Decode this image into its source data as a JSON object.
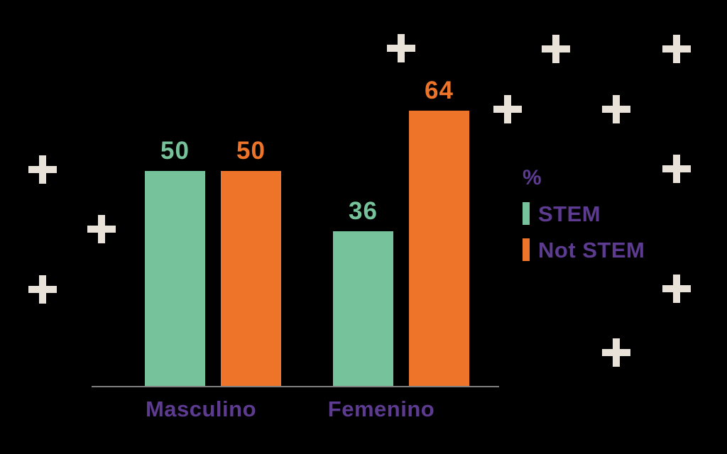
{
  "colors": {
    "background": "#000000",
    "stem_green": "#76C29B",
    "not_stem_orange": "#ED7428",
    "text_purple": "#5D3B90",
    "plus_cream": "#E9E2D8",
    "axis_gray": "#7F7F7F"
  },
  "chart_data": {
    "type": "bar",
    "title": "",
    "xlabel": "",
    "ylabel": "",
    "unit": "%",
    "categories": [
      "Masculino",
      "Femenino"
    ],
    "series": [
      {
        "name": "STEM",
        "color": "#76C29B",
        "values": [
          50,
          36
        ]
      },
      {
        "name": "Not STEM",
        "color": "#ED7428",
        "values": [
          50,
          64
        ]
      }
    ],
    "legend_title": "%",
    "legend_position": "right",
    "ylim": [
      0,
      100
    ],
    "grid": false,
    "value_labels_shown": true
  }
}
